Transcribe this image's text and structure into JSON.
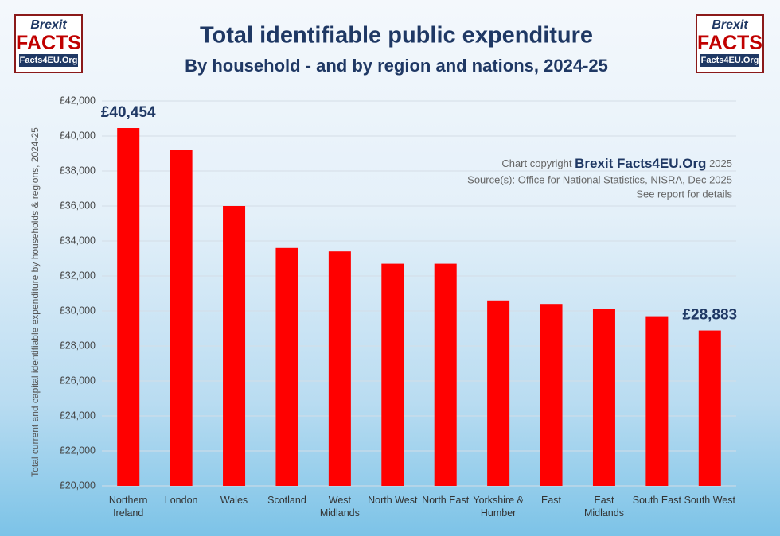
{
  "logo": {
    "top": "Brexit",
    "main": "FACTS",
    "site": "Facts4EU.Org"
  },
  "chart_data": {
    "type": "bar",
    "title": "Total identifiable public expenditure",
    "subtitle": "By household - and by region and nations, 2024-25",
    "y_label": "Total current and capital identifiable expenditure by households & regions, 2024-25",
    "copyright": {
      "prefix": "Chart copyright",
      "brand": "Brexit Facts4EU.Org",
      "year": "2025"
    },
    "source": "Source(s): Office for National Statistics, NISRA, Dec 2025",
    "note": "See report for details",
    "categories": [
      "Northern\nIreland",
      "London",
      "Wales",
      "Scotland",
      "West\nMidlands",
      "North West",
      "North East",
      "Yorkshire &\nHumber",
      "East",
      "East\nMidlands",
      "South East",
      "South West"
    ],
    "values": [
      40454,
      39200,
      36000,
      33600,
      33400,
      32700,
      32700,
      30600,
      30400,
      30100,
      29700,
      28883
    ],
    "value_labels": [
      "£40,454",
      null,
      null,
      null,
      null,
      null,
      null,
      null,
      null,
      null,
      null,
      "£28,883"
    ],
    "color": "#ff0000",
    "ylim": [
      20000,
      42000
    ],
    "yticks": [
      {
        "value": 20000,
        "label": "£20,000"
      },
      {
        "value": 22000,
        "label": "£22,000"
      },
      {
        "value": 24000,
        "label": "£24,000"
      },
      {
        "value": 26000,
        "label": "£26,000"
      },
      {
        "value": 28000,
        "label": "£28,000"
      },
      {
        "value": 30000,
        "label": "£30,000"
      },
      {
        "value": 32000,
        "label": "£32,000"
      },
      {
        "value": 34000,
        "label": "£34,000"
      },
      {
        "value": 36000,
        "label": "£36,000"
      },
      {
        "value": 38000,
        "label": "£38,000"
      },
      {
        "value": 40000,
        "label": "£40,000"
      },
      {
        "value": 42000,
        "label": "£42,000"
      }
    ],
    "grid": true
  }
}
